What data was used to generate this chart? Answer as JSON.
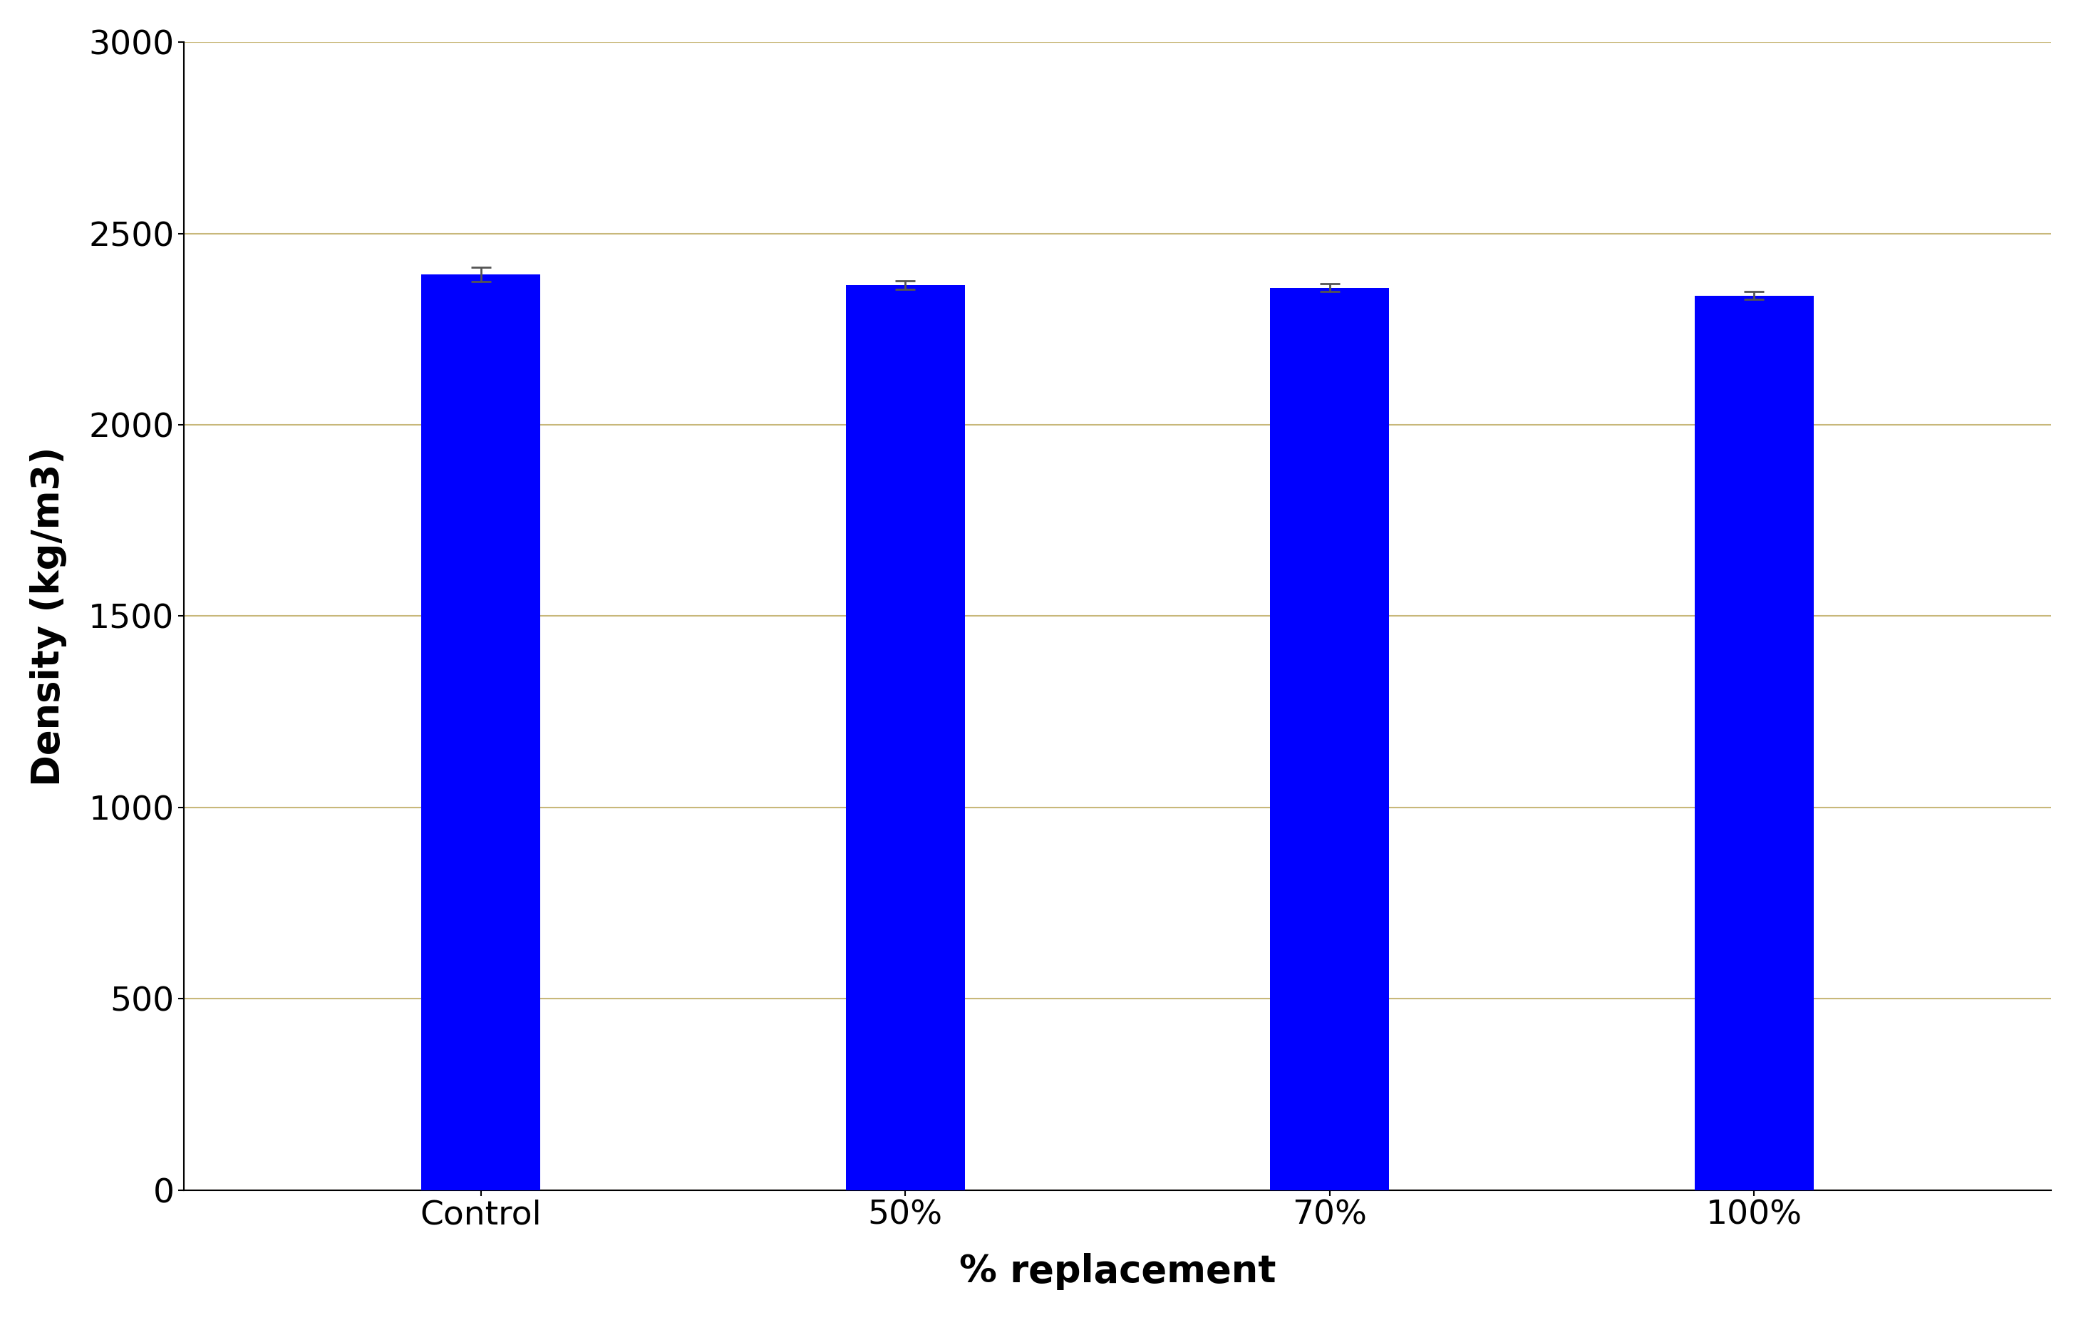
{
  "categories": [
    "Control",
    "50%",
    "70%",
    "100%"
  ],
  "values": [
    2393,
    2365,
    2358,
    2338
  ],
  "errors": [
    18,
    12,
    10,
    10
  ],
  "bar_color": "#0000FF",
  "error_color": "#555555",
  "ylabel": "Density (kg/m3)",
  "xlabel": "% replacement",
  "ylim": [
    0,
    3000
  ],
  "yticks": [
    0,
    500,
    1000,
    1500,
    2000,
    2500,
    3000
  ],
  "background_color": "#FFFFFF",
  "plot_bg_color": "#FFFFFF",
  "grid_color": "#C8B87A",
  "xlabel_fontsize": 38,
  "ylabel_fontsize": 38,
  "tick_fontsize": 34,
  "xlabel_fontweight": "bold",
  "ylabel_fontweight": "bold",
  "bar_width": 0.28,
  "capsize": 10,
  "capthick": 2,
  "elinewidth": 2
}
